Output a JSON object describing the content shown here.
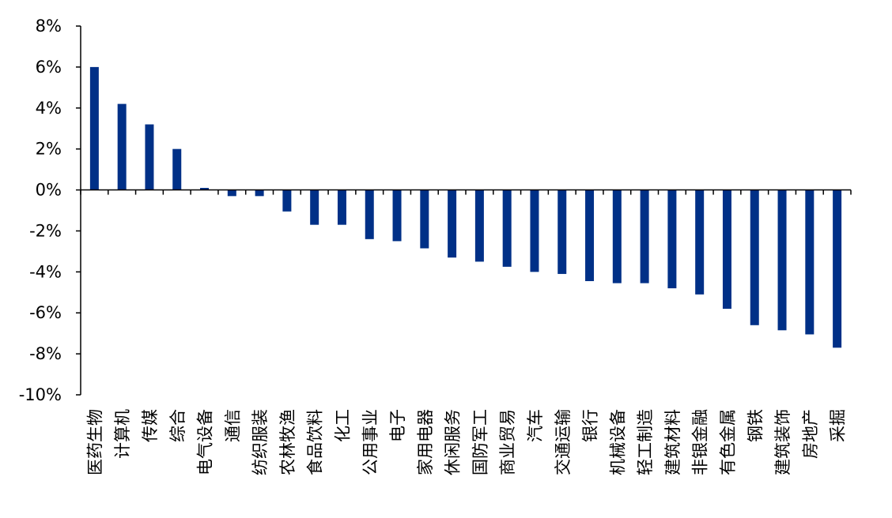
{
  "chart_data": {
    "type": "bar",
    "title": "",
    "xlabel": "",
    "ylabel": "",
    "ylim": [
      -10,
      8
    ],
    "ytick_step": 2,
    "ytick_suffix": "%",
    "grid": false,
    "bar_color": "#003087",
    "categories": [
      "医药生物",
      "计算机",
      "传媒",
      "综合",
      "电气设备",
      "通信",
      "纺织服装",
      "农林牧渔",
      "食品饮料",
      "化工",
      "公用事业",
      "电子",
      "家用电器",
      "休闲服务",
      "国防军工",
      "商业贸易",
      "汽车",
      "交通运输",
      "银行",
      "机械设备",
      "轻工制造",
      "建筑材料",
      "非银金融",
      "有色金属",
      "钢铁",
      "建筑装饰",
      "房地产",
      "采掘"
    ],
    "values": [
      6.0,
      4.2,
      3.2,
      2.0,
      0.1,
      -0.3,
      -0.3,
      -1.05,
      -1.7,
      -1.7,
      -2.4,
      -2.5,
      -2.85,
      -3.3,
      -3.5,
      -3.75,
      -4.0,
      -4.1,
      -4.45,
      -4.55,
      -4.55,
      -4.8,
      -5.1,
      -5.8,
      -6.6,
      -6.85,
      -7.05,
      -7.7
    ]
  }
}
